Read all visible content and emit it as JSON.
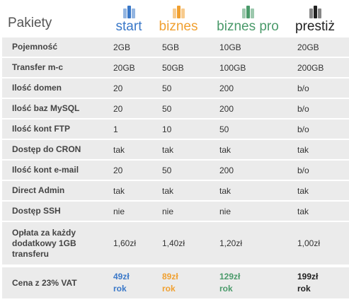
{
  "header": {
    "title": "Pakiety",
    "plans": [
      {
        "name": "start",
        "color": "#3a78c8"
      },
      {
        "name": "biznes",
        "color": "#f0a030"
      },
      {
        "name": "biznes pro",
        "color": "#4a9a6a"
      },
      {
        "name": "prestiż",
        "color": "#222222"
      }
    ]
  },
  "rows": [
    {
      "label": "Pojemność",
      "values": [
        "2GB",
        "5GB",
        "10GB",
        "20GB"
      ]
    },
    {
      "label": "Transfer m-c",
      "values": [
        "20GB",
        "50GB",
        "100GB",
        "200GB"
      ]
    },
    {
      "label": "Ilość domen",
      "values": [
        "20",
        "50",
        "200",
        "b/o"
      ]
    },
    {
      "label": "Ilość baz MySQL",
      "values": [
        "20",
        "50",
        "200",
        "b/o"
      ]
    },
    {
      "label": "Ilość kont FTP",
      "values": [
        "1",
        "10",
        "50",
        "b/o"
      ]
    },
    {
      "label": "Dostęp do CRON",
      "values": [
        "tak",
        "tak",
        "tak",
        "tak"
      ]
    },
    {
      "label": "Ilość kont e-mail",
      "values": [
        "20",
        "50",
        "200",
        "b/o"
      ]
    },
    {
      "label": "Direct Admin",
      "values": [
        "tak",
        "tak",
        "tak",
        "tak"
      ]
    },
    {
      "label": "Dostęp SSH",
      "values": [
        "nie",
        "nie",
        "nie",
        "tak"
      ]
    },
    {
      "label_lines": [
        "Opłata za każdy",
        "dodatkowy 1GB",
        "transferu"
      ],
      "values": [
        "1,60zł",
        "1,40zł",
        "1,20zł",
        "1,00zł"
      ]
    }
  ],
  "price": {
    "label": "Cena z 23% VAT",
    "values": [
      {
        "amount": "49zł",
        "period": "rok"
      },
      {
        "amount": "89zł",
        "period": "rok"
      },
      {
        "amount": "129zł",
        "period": "rok"
      },
      {
        "amount": "199zł",
        "period": "rok"
      }
    ]
  }
}
